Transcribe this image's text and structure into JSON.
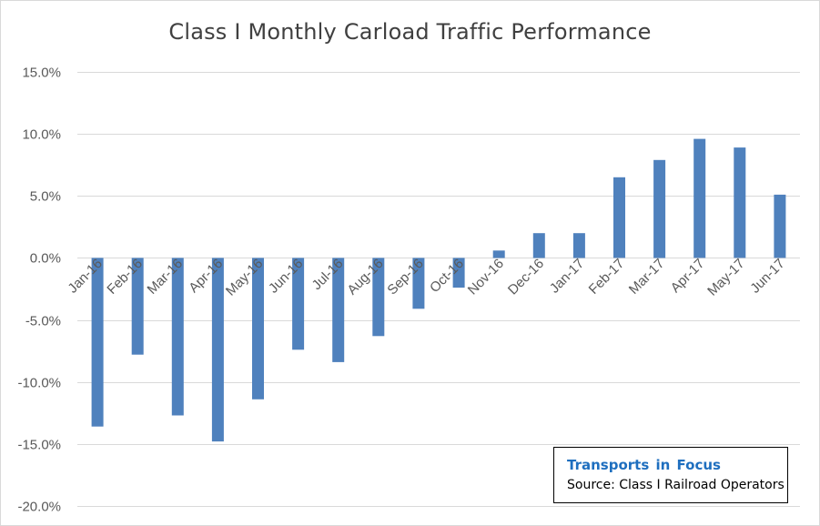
{
  "chart_data": {
    "type": "bar",
    "title": "Class I Monthly Carload Traffic Performance",
    "xlabel": "",
    "ylabel": "",
    "categories": [
      "Jan-16",
      "Feb-16",
      "Mar-16",
      "Apr-16",
      "May-16",
      "Jun-16",
      "Jul-16",
      "Aug-16",
      "Sep-16",
      "Oct-16",
      "Nov-16",
      "Dec-16",
      "Jan-17",
      "Feb-17",
      "Mar-17",
      "Apr-17",
      "May-17",
      "Jun-17"
    ],
    "values": [
      -13.6,
      -7.8,
      -12.7,
      -14.8,
      -11.4,
      -7.4,
      -8.4,
      -6.3,
      -4.1,
      -2.4,
      0.6,
      2.0,
      2.0,
      6.5,
      7.9,
      9.6,
      8.9,
      5.1
    ],
    "ylim": [
      -20,
      15
    ],
    "yticks": [
      -20,
      -15,
      -10,
      -5,
      0,
      5,
      10,
      15
    ],
    "ytick_labels": [
      "-20.0%",
      "-15.0%",
      "-10.0%",
      "-5.0%",
      "0.0%",
      "5.0%",
      "10.0%",
      "15.0%"
    ],
    "grid": true,
    "bar_color": "#4f81bd",
    "grid_color": "#d9d9d9"
  },
  "source_box": {
    "brand": "Transports in Focus",
    "text": "Source: Class I Railroad Operators",
    "brand_color": "#1f6fbf"
  }
}
